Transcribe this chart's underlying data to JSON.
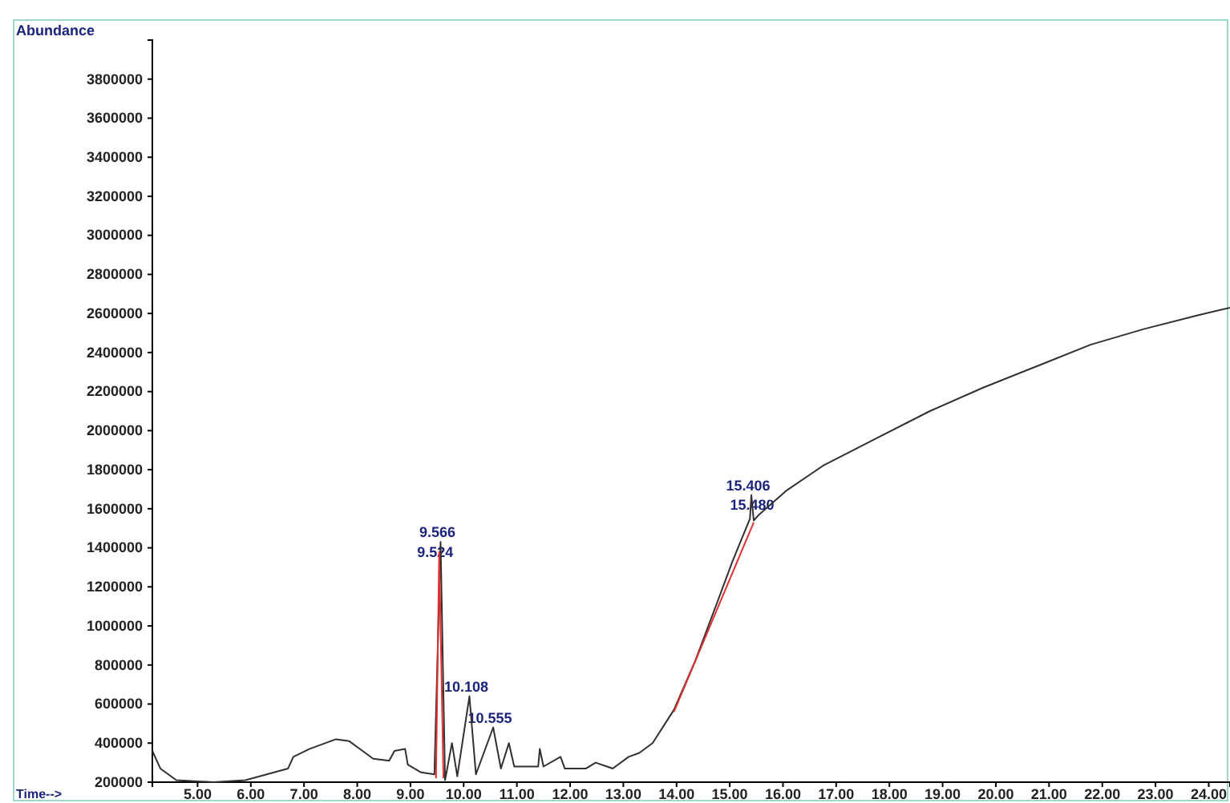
{
  "chart_data": {
    "type": "line",
    "ylabel": "Abundance",
    "xlabel": "Time-->",
    "xlim": [
      4.15,
      24.4
    ],
    "ylim": [
      200000,
      4000000
    ],
    "xticks": [
      {
        "value": 5,
        "label": "5.00"
      },
      {
        "value": 6,
        "label": "6.00"
      },
      {
        "value": 7,
        "label": "7.00"
      },
      {
        "value": 8,
        "label": "8.00"
      },
      {
        "value": 9,
        "label": "9.00"
      },
      {
        "value": 10,
        "label": "10.00"
      },
      {
        "value": 11,
        "label": "11.00"
      },
      {
        "value": 12,
        "label": "12.00"
      },
      {
        "value": 13,
        "label": "13.00"
      },
      {
        "value": 14,
        "label": "14.00"
      },
      {
        "value": 15,
        "label": "15.00"
      },
      {
        "value": 16,
        "label": "16.00"
      },
      {
        "value": 17,
        "label": "17.00"
      },
      {
        "value": 18,
        "label": "18.00"
      },
      {
        "value": 19,
        "label": "19.00"
      },
      {
        "value": 20,
        "label": "20.00"
      },
      {
        "value": 21,
        "label": "21.00"
      },
      {
        "value": 22,
        "label": "22.00"
      },
      {
        "value": 23,
        "label": "23.00"
      },
      {
        "value": 24,
        "label": "24.00"
      }
    ],
    "yticks": [
      200000,
      400000,
      600000,
      800000,
      1000000,
      1200000,
      1400000,
      1600000,
      1800000,
      2000000,
      2200000,
      2400000,
      2600000,
      2800000,
      3000000,
      3200000,
      3400000,
      3600000,
      3800000
    ],
    "grid": false,
    "marker": "none",
    "line_style": "solid",
    "series": [
      {
        "color": "#303030",
        "x": [
          4.15,
          4.3,
          4.6,
          5.3,
          5.9,
          6.3,
          6.7,
          6.8,
          7.1,
          7.6,
          7.85,
          8.1,
          8.3,
          8.6,
          8.7,
          8.9,
          8.95,
          9.2,
          9.45,
          9.566,
          9.65,
          9.78,
          9.88,
          10.108,
          10.23,
          10.555,
          10.7,
          10.85,
          10.95,
          11.4,
          11.43,
          11.5,
          11.82,
          11.9,
          12.3,
          12.48,
          12.8,
          13.1,
          13.3,
          13.55,
          13.95,
          14.35,
          14.75,
          15.05,
          15.38,
          15.406,
          15.45,
          15.55,
          16.05,
          16.75,
          17.75,
          18.76,
          19.76,
          20.77,
          21.78,
          22.78,
          23.79,
          24.4
        ],
        "values": [
          360000,
          270000,
          210000,
          200000,
          210000,
          240000,
          270000,
          330000,
          370000,
          420000,
          410000,
          360000,
          320000,
          310000,
          360000,
          370000,
          290000,
          250000,
          240000,
          1430000,
          210000,
          400000,
          230000,
          640000,
          240000,
          480000,
          270000,
          400000,
          280000,
          280000,
          370000,
          280000,
          330000,
          270000,
          270000,
          300000,
          270000,
          330000,
          350000,
          400000,
          570000,
          820000,
          1110000,
          1330000,
          1550000,
          1670000,
          1540000,
          1570000,
          1690000,
          1820000,
          1960000,
          2100000,
          2220000,
          2330000,
          2440000,
          2520000,
          2590000,
          2630000
        ]
      },
      {
        "color": "#e03030",
        "x": [
          9.48,
          9.54,
          9.62,
          11,
          13.95,
          15.45
        ],
        "values": [
          220000,
          1380000,
          220000,
          null,
          560000,
          1530000
        ]
      }
    ],
    "annotations": [
      {
        "text": "9.566",
        "x": 9.566,
        "y": 1430000
      },
      {
        "text": "9.524",
        "x": 9.524,
        "y": 1330000
      },
      {
        "text": "10.108",
        "x": 10.108,
        "y": 640000
      },
      {
        "text": "10.555",
        "x": 10.555,
        "y": 480000
      },
      {
        "text": "15.406",
        "x": 15.406,
        "y": 1670000
      },
      {
        "text": "15.480",
        "x": 15.48,
        "y": 1570000
      }
    ]
  }
}
